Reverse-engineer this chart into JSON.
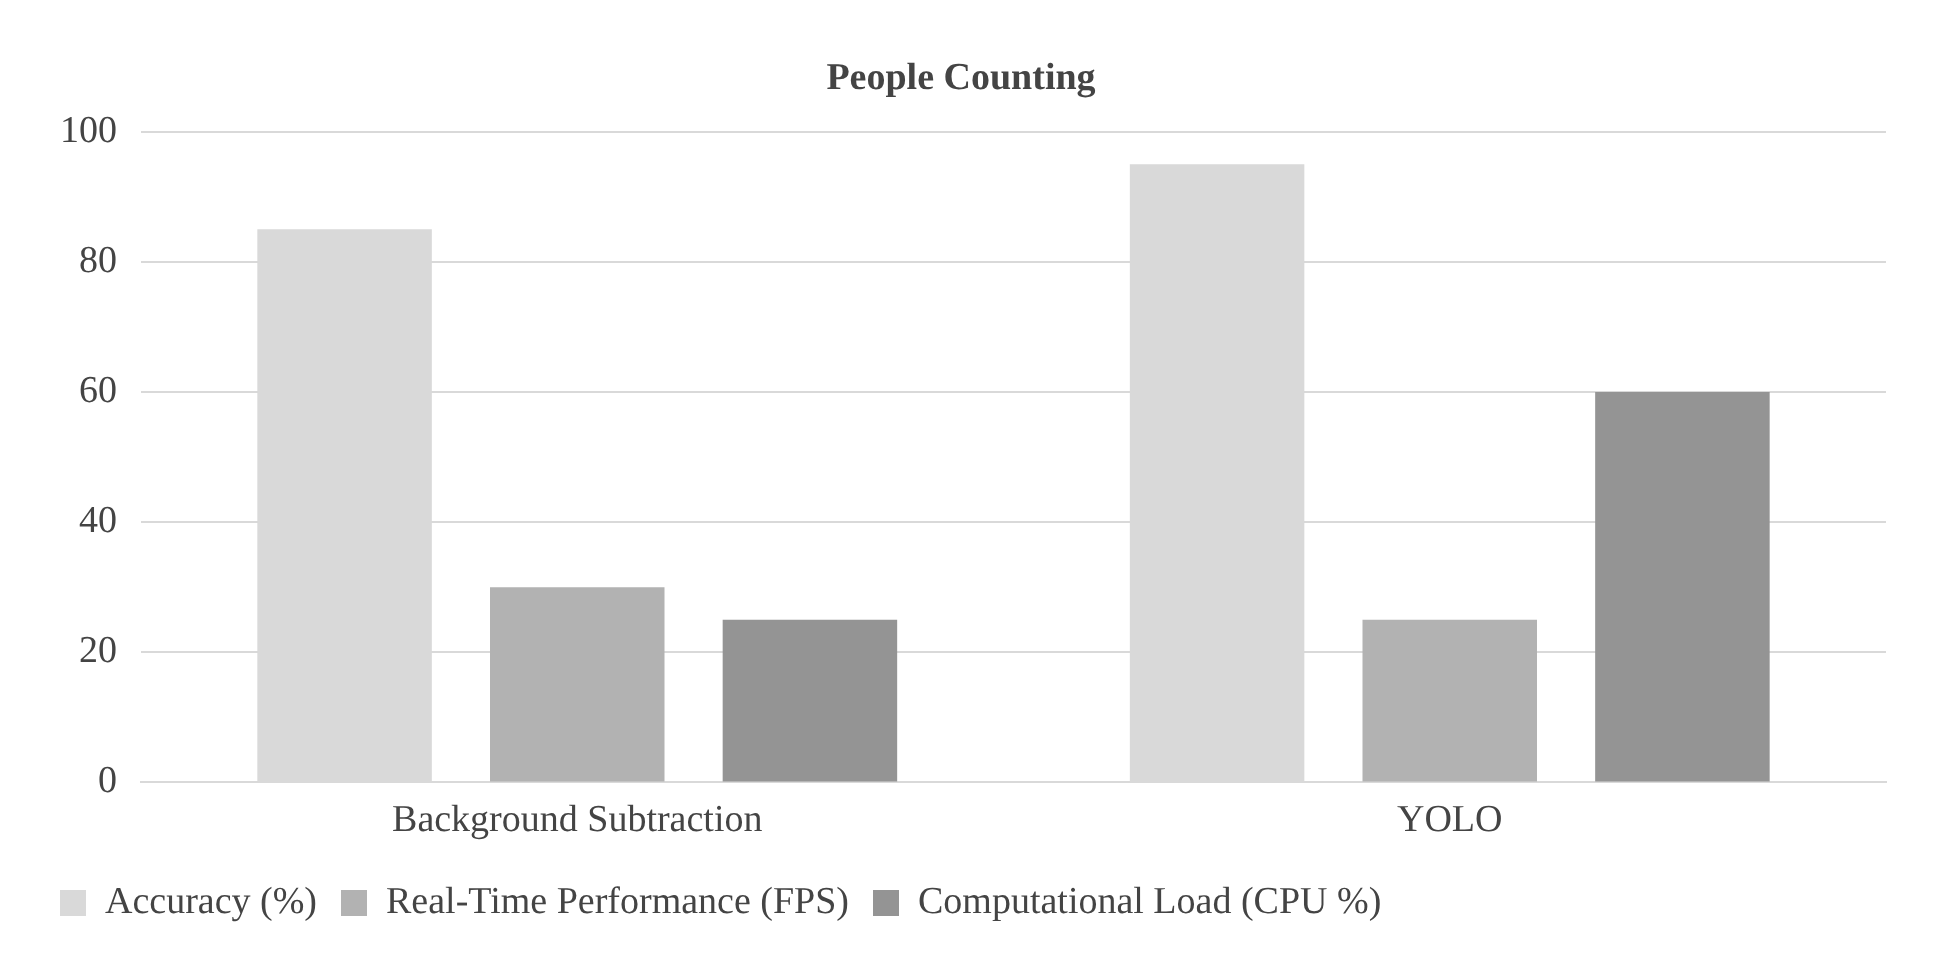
{
  "chart_data": {
    "type": "bar",
    "title": "People Counting",
    "categories": [
      "Background Subtraction",
      "YOLO"
    ],
    "series": [
      {
        "name": "Accuracy (%)",
        "color": "#d9d9d9",
        "values": [
          85,
          95
        ]
      },
      {
        "name": "Real-Time Performance (FPS)",
        "color": "#b2b2b2",
        "values": [
          30,
          25
        ]
      },
      {
        "name": "Computational Load (CPU %)",
        "color": "#949494",
        "values": [
          25,
          60
        ]
      }
    ],
    "ylim": [
      0,
      100
    ],
    "yticks": [
      0,
      20,
      40,
      60,
      80,
      100
    ],
    "grid": "y",
    "legend": "bottom"
  }
}
